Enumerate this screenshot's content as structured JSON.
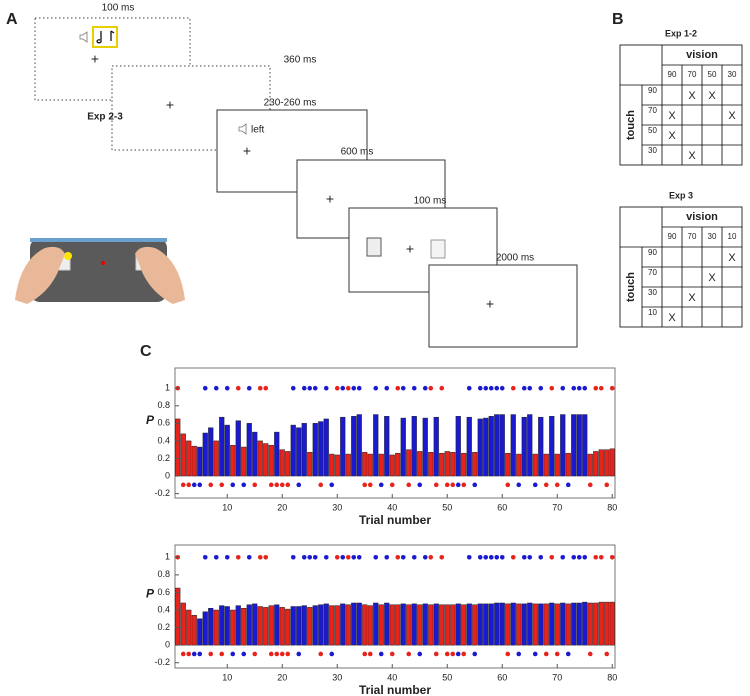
{
  "panel_a": {
    "label": "A",
    "timings": [
      "100 ms",
      "360 ms",
      "230-260 ms",
      "600 ms",
      "100 ms",
      "2000 ms"
    ],
    "exp_label": "Exp 2-3",
    "cue_word": "left",
    "fixation": "+"
  },
  "panel_b": {
    "label": "B",
    "tables": [
      {
        "title": "Exp 1-2",
        "col_header": "vision",
        "row_header": "touch",
        "columns": [
          90,
          70,
          50,
          30
        ],
        "rows": [
          {
            "label": 90,
            "cells": [
              null,
              "X",
              "X",
              null
            ]
          },
          {
            "label": 70,
            "cells": [
              "X",
              null,
              null,
              "X"
            ]
          },
          {
            "label": 50,
            "cells": [
              "X",
              null,
              null,
              null
            ]
          },
          {
            "label": 30,
            "cells": [
              null,
              "X",
              null,
              null
            ]
          }
        ]
      },
      {
        "title": "Exp 3",
        "col_header": "vision",
        "row_header": "touch",
        "columns": [
          90,
          70,
          30,
          10
        ],
        "rows": [
          {
            "label": 90,
            "cells": [
              null,
              null,
              null,
              "X"
            ]
          },
          {
            "label": 70,
            "cells": [
              null,
              null,
              "X",
              null
            ]
          },
          {
            "label": 30,
            "cells": [
              null,
              "X",
              null,
              null
            ]
          },
          {
            "label": 10,
            "cells": [
              "X",
              null,
              null,
              null
            ]
          }
        ]
      }
    ]
  },
  "panel_c_label": "C",
  "chart_data": [
    {
      "type": "bar",
      "xlabel": "Trial number",
      "ylabel": "P",
      "x": [
        1,
        2,
        3,
        4,
        5,
        6,
        7,
        8,
        9,
        10,
        11,
        12,
        13,
        14,
        15,
        16,
        17,
        18,
        19,
        20,
        21,
        22,
        23,
        24,
        25,
        26,
        27,
        28,
        29,
        30,
        31,
        32,
        33,
        34,
        35,
        36,
        37,
        38,
        39,
        40,
        41,
        42,
        43,
        44,
        45,
        46,
        47,
        48,
        49,
        50,
        51,
        52,
        53,
        54,
        55,
        56,
        57,
        58,
        59,
        60,
        61,
        62,
        63,
        64,
        65,
        66,
        67,
        68,
        69,
        70,
        71,
        72,
        73,
        74,
        75,
        76,
        77,
        78,
        79,
        80
      ],
      "values": [
        0.65,
        0.48,
        0.4,
        0.34,
        0.33,
        0.49,
        0.55,
        0.4,
        0.67,
        0.58,
        0.35,
        0.63,
        0.33,
        0.6,
        0.5,
        0.4,
        0.37,
        0.35,
        0.5,
        0.3,
        0.28,
        0.58,
        0.55,
        0.6,
        0.27,
        0.6,
        0.62,
        0.65,
        0.25,
        0.24,
        0.67,
        0.25,
        0.68,
        0.7,
        0.27,
        0.25,
        0.7,
        0.25,
        0.68,
        0.24,
        0.26,
        0.66,
        0.3,
        0.68,
        0.28,
        0.66,
        0.27,
        0.67,
        0.26,
        0.28,
        0.27,
        0.68,
        0.26,
        0.67,
        0.27,
        0.65,
        0.66,
        0.68,
        0.7,
        0.7,
        0.26,
        0.7,
        0.25,
        0.67,
        0.7,
        0.25,
        0.67,
        0.25,
        0.68,
        0.25,
        0.7,
        0.26,
        0.7,
        0.7,
        0.7,
        0.25,
        0.28,
        0.3,
        0.3,
        0.31
      ],
      "colors": [
        "#e8231c",
        "#e8231c",
        "#e8231c",
        "#e8231c",
        "#1a1ad0",
        "#1a1ad0",
        "#1a1ad0",
        "#e8231c",
        "#1a1ad0",
        "#1a1ad0",
        "#e8231c",
        "#1a1ad0",
        "#e8231c",
        "#1a1ad0",
        "#1a1ad0",
        "#e8231c",
        "#e8231c",
        "#e8231c",
        "#1a1ad0",
        "#e8231c",
        "#e8231c",
        "#1a1ad0",
        "#1a1ad0",
        "#1a1ad0",
        "#e8231c",
        "#1a1ad0",
        "#1a1ad0",
        "#1a1ad0",
        "#e8231c",
        "#e8231c",
        "#1a1ad0",
        "#e8231c",
        "#1a1ad0",
        "#1a1ad0",
        "#e8231c",
        "#e8231c",
        "#1a1ad0",
        "#e8231c",
        "#1a1ad0",
        "#e8231c",
        "#e8231c",
        "#1a1ad0",
        "#e8231c",
        "#1a1ad0",
        "#e8231c",
        "#1a1ad0",
        "#e8231c",
        "#1a1ad0",
        "#e8231c",
        "#e8231c",
        "#e8231c",
        "#1a1ad0",
        "#e8231c",
        "#1a1ad0",
        "#e8231c",
        "#1a1ad0",
        "#1a1ad0",
        "#1a1ad0",
        "#1a1ad0",
        "#1a1ad0",
        "#e8231c",
        "#1a1ad0",
        "#e8231c",
        "#1a1ad0",
        "#1a1ad0",
        "#e8231c",
        "#1a1ad0",
        "#e8231c",
        "#1a1ad0",
        "#e8231c",
        "#1a1ad0",
        "#e8231c",
        "#1a1ad0",
        "#1a1ad0",
        "#1a1ad0",
        "#e8231c",
        "#e8231c",
        "#e8231c",
        "#e8231c",
        "#e8231c"
      ],
      "dots": {
        "values": [
          1,
          -0.1,
          -0.1,
          -0.1,
          -0.1,
          1,
          -0.1,
          1,
          -0.1,
          1,
          -0.1,
          1,
          -0.1,
          1,
          -0.1,
          1,
          1,
          -0.1,
          -0.1,
          -0.1,
          -0.1,
          1,
          -0.1,
          1,
          1,
          1,
          -0.1,
          1,
          -0.1,
          1,
          1,
          1,
          1,
          1,
          -0.1,
          -0.1,
          1,
          -0.1,
          1,
          -0.1,
          1,
          1,
          -0.1,
          1,
          -0.1,
          1,
          1,
          -0.1,
          1,
          -0.1,
          -0.1,
          -0.1,
          -0.1,
          1,
          -0.1,
          1,
          1,
          1,
          1,
          1,
          -0.1,
          1,
          -0.1,
          1,
          1,
          -0.1,
          1,
          -0.1,
          1,
          -0.1,
          1,
          -0.1,
          1,
          1,
          1,
          -0.1,
          1,
          1,
          -0.1,
          1
        ],
        "colors": [
          "#e8231c",
          "#e8231c",
          "#e8231c",
          "#1a1ad0",
          "#1a1ad0",
          "#1a1ad0",
          "#e8231c",
          "#1a1ad0",
          "#e8231c",
          "#1a1ad0",
          "#1a1ad0",
          "#e8231c",
          "#1a1ad0",
          "#1a1ad0",
          "#e8231c",
          "#e8231c",
          "#e8231c",
          "#e8231c",
          "#e8231c",
          "#e8231c",
          "#e8231c",
          "#1a1ad0",
          "#1a1ad0",
          "#1a1ad0",
          "#1a1ad0",
          "#1a1ad0",
          "#e8231c",
          "#1a1ad0",
          "#1a1ad0",
          "#e8231c",
          "#1a1ad0",
          "#e8231c",
          "#1a1ad0",
          "#1a1ad0",
          "#e8231c",
          "#e8231c",
          "#1a1ad0",
          "#1a1ad0",
          "#1a1ad0",
          "#e8231c",
          "#e8231c",
          "#1a1ad0",
          "#e8231c",
          "#1a1ad0",
          "#1a1ad0",
          "#1a1ad0",
          "#e8231c",
          "#e8231c",
          "#e8231c",
          "#e8231c",
          "#e8231c",
          "#1a1ad0",
          "#e8231c",
          "#1a1ad0",
          "#1a1ad0",
          "#1a1ad0",
          "#1a1ad0",
          "#1a1ad0",
          "#1a1ad0",
          "#1a1ad0",
          "#e8231c",
          "#e8231c",
          "#1a1ad0",
          "#1a1ad0",
          "#1a1ad0",
          "#1a1ad0",
          "#1a1ad0",
          "#e8231c",
          "#e8231c",
          "#e8231c",
          "#1a1ad0",
          "#1a1ad0",
          "#1a1ad0",
          "#1a1ad0",
          "#1a1ad0",
          "#e8231c",
          "#e8231c",
          "#e8231c",
          "#e8231c",
          "#e8231c"
        ]
      },
      "xlim": [
        0.5,
        80.5
      ],
      "ylim": [
        -0.25,
        1.23
      ],
      "xticks": [
        10,
        20,
        30,
        40,
        50,
        60,
        70,
        80
      ],
      "yticks": [
        -0.2,
        0,
        0.2,
        0.4,
        0.6,
        0.8,
        1
      ]
    },
    {
      "type": "bar",
      "xlabel": "Trial number",
      "ylabel": "P",
      "x": [
        1,
        2,
        3,
        4,
        5,
        6,
        7,
        8,
        9,
        10,
        11,
        12,
        13,
        14,
        15,
        16,
        17,
        18,
        19,
        20,
        21,
        22,
        23,
        24,
        25,
        26,
        27,
        28,
        29,
        30,
        31,
        32,
        33,
        34,
        35,
        36,
        37,
        38,
        39,
        40,
        41,
        42,
        43,
        44,
        45,
        46,
        47,
        48,
        49,
        50,
        51,
        52,
        53,
        54,
        55,
        56,
        57,
        58,
        59,
        60,
        61,
        62,
        63,
        64,
        65,
        66,
        67,
        68,
        69,
        70,
        71,
        72,
        73,
        74,
        75,
        76,
        77,
        78,
        79,
        80
      ],
      "values": [
        0.65,
        0.48,
        0.4,
        0.34,
        0.3,
        0.38,
        0.42,
        0.4,
        0.45,
        0.44,
        0.4,
        0.45,
        0.42,
        0.46,
        0.47,
        0.44,
        0.43,
        0.45,
        0.46,
        0.43,
        0.41,
        0.44,
        0.44,
        0.45,
        0.43,
        0.45,
        0.46,
        0.47,
        0.45,
        0.45,
        0.47,
        0.46,
        0.48,
        0.48,
        0.46,
        0.45,
        0.48,
        0.46,
        0.48,
        0.46,
        0.46,
        0.47,
        0.46,
        0.47,
        0.46,
        0.47,
        0.46,
        0.47,
        0.46,
        0.46,
        0.46,
        0.47,
        0.46,
        0.47,
        0.46,
        0.47,
        0.47,
        0.47,
        0.48,
        0.48,
        0.47,
        0.48,
        0.47,
        0.47,
        0.48,
        0.47,
        0.47,
        0.47,
        0.48,
        0.47,
        0.48,
        0.47,
        0.48,
        0.48,
        0.49,
        0.48,
        0.48,
        0.49,
        0.49,
        0.49
      ],
      "colors": [
        "#e8231c",
        "#e8231c",
        "#e8231c",
        "#e8231c",
        "#1a1ad0",
        "#1a1ad0",
        "#1a1ad0",
        "#e8231c",
        "#1a1ad0",
        "#1a1ad0",
        "#e8231c",
        "#1a1ad0",
        "#e8231c",
        "#1a1ad0",
        "#1a1ad0",
        "#e8231c",
        "#e8231c",
        "#e8231c",
        "#1a1ad0",
        "#e8231c",
        "#e8231c",
        "#1a1ad0",
        "#1a1ad0",
        "#1a1ad0",
        "#e8231c",
        "#1a1ad0",
        "#1a1ad0",
        "#1a1ad0",
        "#e8231c",
        "#e8231c",
        "#1a1ad0",
        "#e8231c",
        "#1a1ad0",
        "#1a1ad0",
        "#e8231c",
        "#e8231c",
        "#1a1ad0",
        "#e8231c",
        "#1a1ad0",
        "#e8231c",
        "#e8231c",
        "#1a1ad0",
        "#e8231c",
        "#1a1ad0",
        "#e8231c",
        "#1a1ad0",
        "#e8231c",
        "#1a1ad0",
        "#e8231c",
        "#e8231c",
        "#e8231c",
        "#1a1ad0",
        "#e8231c",
        "#1a1ad0",
        "#e8231c",
        "#1a1ad0",
        "#1a1ad0",
        "#1a1ad0",
        "#1a1ad0",
        "#1a1ad0",
        "#e8231c",
        "#1a1ad0",
        "#e8231c",
        "#1a1ad0",
        "#1a1ad0",
        "#e8231c",
        "#1a1ad0",
        "#e8231c",
        "#1a1ad0",
        "#e8231c",
        "#1a1ad0",
        "#e8231c",
        "#1a1ad0",
        "#1a1ad0",
        "#1a1ad0",
        "#e8231c",
        "#e8231c",
        "#e8231c",
        "#e8231c",
        "#e8231c"
      ],
      "dots": {
        "values": [
          1,
          -0.1,
          -0.1,
          -0.1,
          -0.1,
          1,
          -0.1,
          1,
          -0.1,
          1,
          -0.1,
          1,
          -0.1,
          1,
          -0.1,
          1,
          1,
          -0.1,
          -0.1,
          -0.1,
          -0.1,
          1,
          -0.1,
          1,
          1,
          1,
          -0.1,
          1,
          -0.1,
          1,
          1,
          1,
          1,
          1,
          -0.1,
          -0.1,
          1,
          -0.1,
          1,
          -0.1,
          1,
          1,
          -0.1,
          1,
          -0.1,
          1,
          1,
          -0.1,
          1,
          -0.1,
          -0.1,
          -0.1,
          -0.1,
          1,
          -0.1,
          1,
          1,
          1,
          1,
          1,
          -0.1,
          1,
          -0.1,
          1,
          1,
          -0.1,
          1,
          -0.1,
          1,
          -0.1,
          1,
          -0.1,
          1,
          1,
          1,
          -0.1,
          1,
          1,
          -0.1,
          1
        ],
        "colors": [
          "#e8231c",
          "#e8231c",
          "#e8231c",
          "#1a1ad0",
          "#1a1ad0",
          "#1a1ad0",
          "#e8231c",
          "#1a1ad0",
          "#e8231c",
          "#1a1ad0",
          "#1a1ad0",
          "#e8231c",
          "#1a1ad0",
          "#1a1ad0",
          "#e8231c",
          "#e8231c",
          "#e8231c",
          "#e8231c",
          "#e8231c",
          "#e8231c",
          "#e8231c",
          "#1a1ad0",
          "#1a1ad0",
          "#1a1ad0",
          "#1a1ad0",
          "#1a1ad0",
          "#e8231c",
          "#1a1ad0",
          "#1a1ad0",
          "#e8231c",
          "#1a1ad0",
          "#e8231c",
          "#1a1ad0",
          "#1a1ad0",
          "#e8231c",
          "#e8231c",
          "#1a1ad0",
          "#1a1ad0",
          "#1a1ad0",
          "#e8231c",
          "#e8231c",
          "#1a1ad0",
          "#e8231c",
          "#1a1ad0",
          "#1a1ad0",
          "#1a1ad0",
          "#e8231c",
          "#e8231c",
          "#e8231c",
          "#e8231c",
          "#e8231c",
          "#1a1ad0",
          "#e8231c",
          "#1a1ad0",
          "#1a1ad0",
          "#1a1ad0",
          "#1a1ad0",
          "#1a1ad0",
          "#1a1ad0",
          "#1a1ad0",
          "#e8231c",
          "#e8231c",
          "#1a1ad0",
          "#1a1ad0",
          "#1a1ad0",
          "#1a1ad0",
          "#1a1ad0",
          "#e8231c",
          "#e8231c",
          "#e8231c",
          "#1a1ad0",
          "#1a1ad0",
          "#1a1ad0",
          "#1a1ad0",
          "#1a1ad0",
          "#e8231c",
          "#e8231c",
          "#e8231c",
          "#e8231c",
          "#e8231c"
        ]
      },
      "xlim": [
        0.5,
        80.5
      ],
      "ylim": [
        -0.26,
        1.14
      ],
      "xticks": [
        10,
        20,
        30,
        40,
        50,
        60,
        70,
        80
      ],
      "yticks": [
        -0.2,
        0,
        0.2,
        0.4,
        0.6,
        0.8,
        1
      ]
    }
  ]
}
